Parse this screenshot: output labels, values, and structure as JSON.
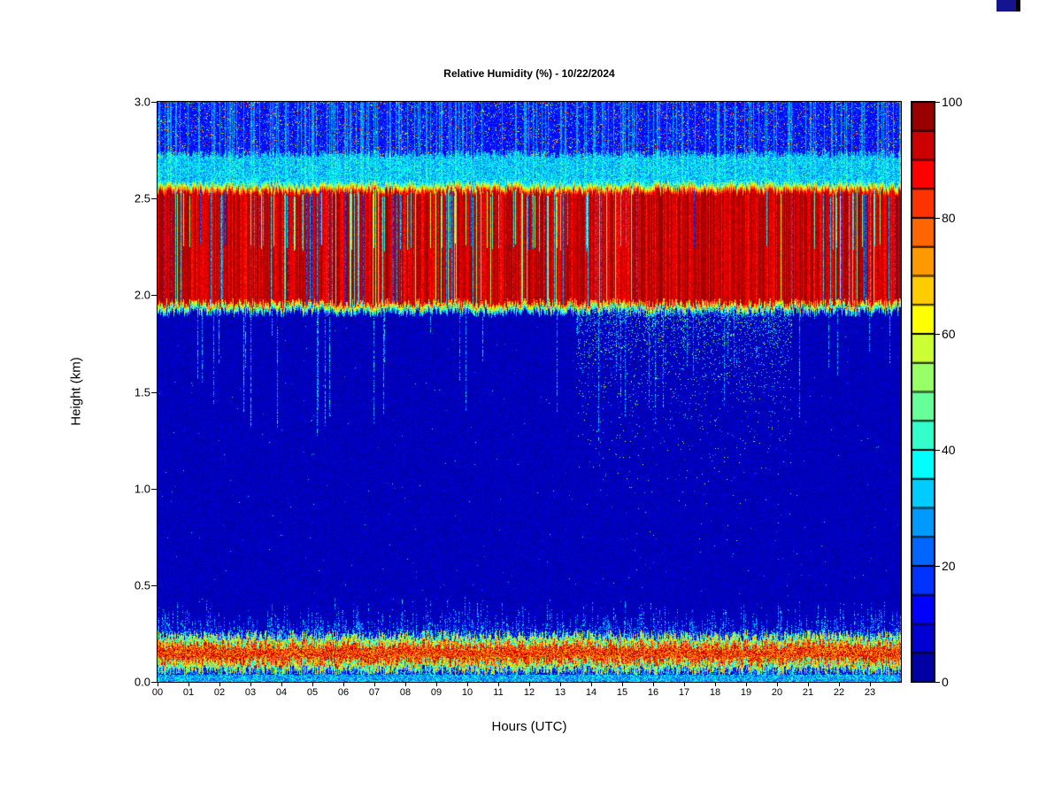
{
  "chart_data": {
    "type": "heatmap",
    "title": "Relative Humidity (%) - 10/22/2024",
    "xlabel": "Hours (UTC)",
    "ylabel": "Height (km)",
    "x_range_hours": [
      0,
      24
    ],
    "x_ticks": [
      "00",
      "01",
      "02",
      "03",
      "04",
      "05",
      "06",
      "07",
      "08",
      "09",
      "10",
      "11",
      "12",
      "13",
      "14",
      "15",
      "16",
      "17",
      "18",
      "19",
      "20",
      "21",
      "22",
      "23"
    ],
    "y_range_km": [
      0,
      3
    ],
    "y_ticks": [
      "0.0",
      "0.5",
      "1.0",
      "1.5",
      "2.0",
      "2.5",
      "3.0"
    ],
    "colorbar": {
      "min": 0,
      "max": 100,
      "ticks": [
        0,
        20,
        40,
        60,
        80,
        100
      ],
      "bins": 20,
      "colormap_stops": [
        [
          0.0,
          "#00008F"
        ],
        [
          0.125,
          "#0000FF"
        ],
        [
          0.375,
          "#00FFFF"
        ],
        [
          0.625,
          "#FFFF00"
        ],
        [
          0.875,
          "#FF0000"
        ],
        [
          1.0,
          "#800000"
        ]
      ]
    },
    "summary_grid": {
      "hours": [
        0,
        2,
        4,
        6,
        8,
        10,
        12,
        14,
        16,
        18,
        20,
        22
      ],
      "heights_km": [
        3.0,
        2.75,
        2.6,
        2.5,
        2.25,
        2.0,
        1.9,
        1.5,
        1.0,
        0.5,
        0.3,
        0.15,
        0.05
      ],
      "humidity_pct": [
        [
          12,
          14,
          11,
          13,
          12,
          14,
          12,
          13,
          11,
          12,
          13,
          12
        ],
        [
          22,
          25,
          20,
          24,
          22,
          21,
          23,
          24,
          20,
          22,
          23,
          21
        ],
        [
          34,
          36,
          33,
          35,
          34,
          36,
          35,
          33,
          36,
          34,
          35,
          34
        ],
        [
          88,
          90,
          86,
          91,
          89,
          90,
          92,
          94,
          97,
          96,
          90,
          89
        ],
        [
          96,
          95,
          97,
          96,
          97,
          96,
          97,
          98,
          100,
          100,
          98,
          97
        ],
        [
          95,
          96,
          94,
          96,
          95,
          96,
          96,
          97,
          99,
          99,
          96,
          95
        ],
        [
          45,
          48,
          42,
          46,
          44,
          45,
          47,
          55,
          60,
          58,
          48,
          45
        ],
        [
          4,
          4,
          5,
          4,
          4,
          4,
          5,
          8,
          10,
          9,
          5,
          4
        ],
        [
          3,
          3,
          3,
          3,
          3,
          3,
          3,
          4,
          4,
          4,
          3,
          3
        ],
        [
          4,
          4,
          4,
          4,
          4,
          4,
          4,
          5,
          5,
          5,
          4,
          4
        ],
        [
          12,
          14,
          11,
          13,
          12,
          13,
          12,
          14,
          15,
          16,
          13,
          12
        ],
        [
          82,
          85,
          88,
          84,
          80,
          83,
          81,
          85,
          84,
          88,
          83,
          81
        ],
        [
          38,
          40,
          36,
          39,
          37,
          38,
          37,
          40,
          39,
          42,
          38,
          37
        ]
      ]
    },
    "render_params": {
      "seed": 20241022,
      "cloud_base_km": 1.96,
      "cloud_top_km": 2.53,
      "base_jitter": 0.05,
      "top_jitter": 0.045,
      "cloud_value": [
        86,
        100
      ],
      "dry_streak_prob": [
        {
          "t0": 0,
          "t1": 13,
          "p": 0.2
        },
        {
          "t0": 13,
          "t1": 16,
          "p": 0.1
        },
        {
          "t0": 16,
          "t1": 19.5,
          "p": 0.025
        },
        {
          "t0": 19.5,
          "t1": 24,
          "p": 0.13
        }
      ],
      "upper_fringe": {
        "yellow_width": 0.05,
        "cyan_band_top_offset": 0.2,
        "cyan_value": 32
      },
      "upper_noise": {
        "base": 9,
        "speckle_prob": 0.12
      },
      "below": {
        "base_value": 3,
        "fringe_width": 0.05,
        "moist_hours": [
          13.5,
          20.5
        ]
      },
      "deep_streak_prob": 0.04,
      "surface_band": {
        "center_km": 0.15,
        "core_halfwidth": 0.045,
        "outer_halfwidth": 0.09,
        "top_max": 0.45,
        "core_value": [
          65,
          100
        ]
      }
    }
  }
}
